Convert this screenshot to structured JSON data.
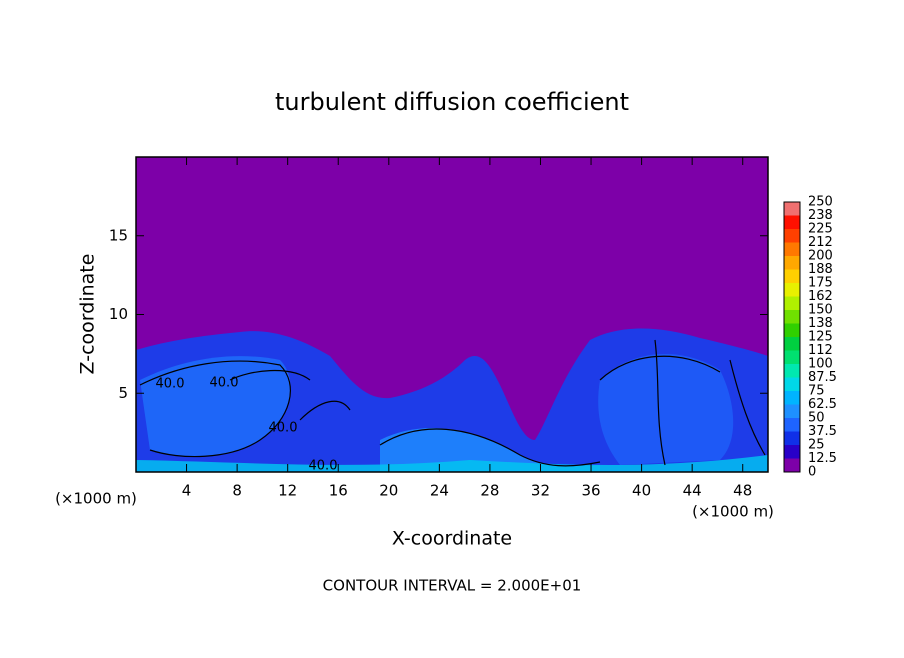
{
  "chart_data": {
    "type": "heatmap",
    "title": "turbulent diffusion coefficient",
    "x_label": "X-coordinate",
    "y_label": "Z-coordinate",
    "x_unit": "(×1000 m)",
    "footnote": "CONTOUR INTERVAL = 2.000E+01",
    "xlim": [
      0,
      50
    ],
    "xticks": [
      4,
      8,
      12,
      16,
      20,
      24,
      28,
      32,
      36,
      40,
      44,
      48
    ],
    "ylim": [
      0,
      20
    ],
    "yticks": [
      5,
      10,
      15
    ],
    "contour_labels": [
      "40.0",
      "40.0",
      "40.0",
      "40.0"
    ],
    "colorbar": {
      "levels": [
        0,
        12.5,
        25,
        37.5,
        50,
        62.5,
        75,
        87.5,
        100,
        112,
        125,
        138,
        150,
        162,
        175,
        188,
        200,
        212,
        225,
        238,
        250
      ],
      "colors": [
        "#7d00a8",
        "#2800c8",
        "#1030e8",
        "#1e64ff",
        "#1e90ff",
        "#00b4ff",
        "#00d8e8",
        "#00e8b0",
        "#00e070",
        "#00d040",
        "#30d000",
        "#70e000",
        "#b0f000",
        "#e8f000",
        "#ffd000",
        "#ffa800",
        "#ff7800",
        "#ff4000",
        "#ff1000",
        "#f07070"
      ]
    }
  }
}
